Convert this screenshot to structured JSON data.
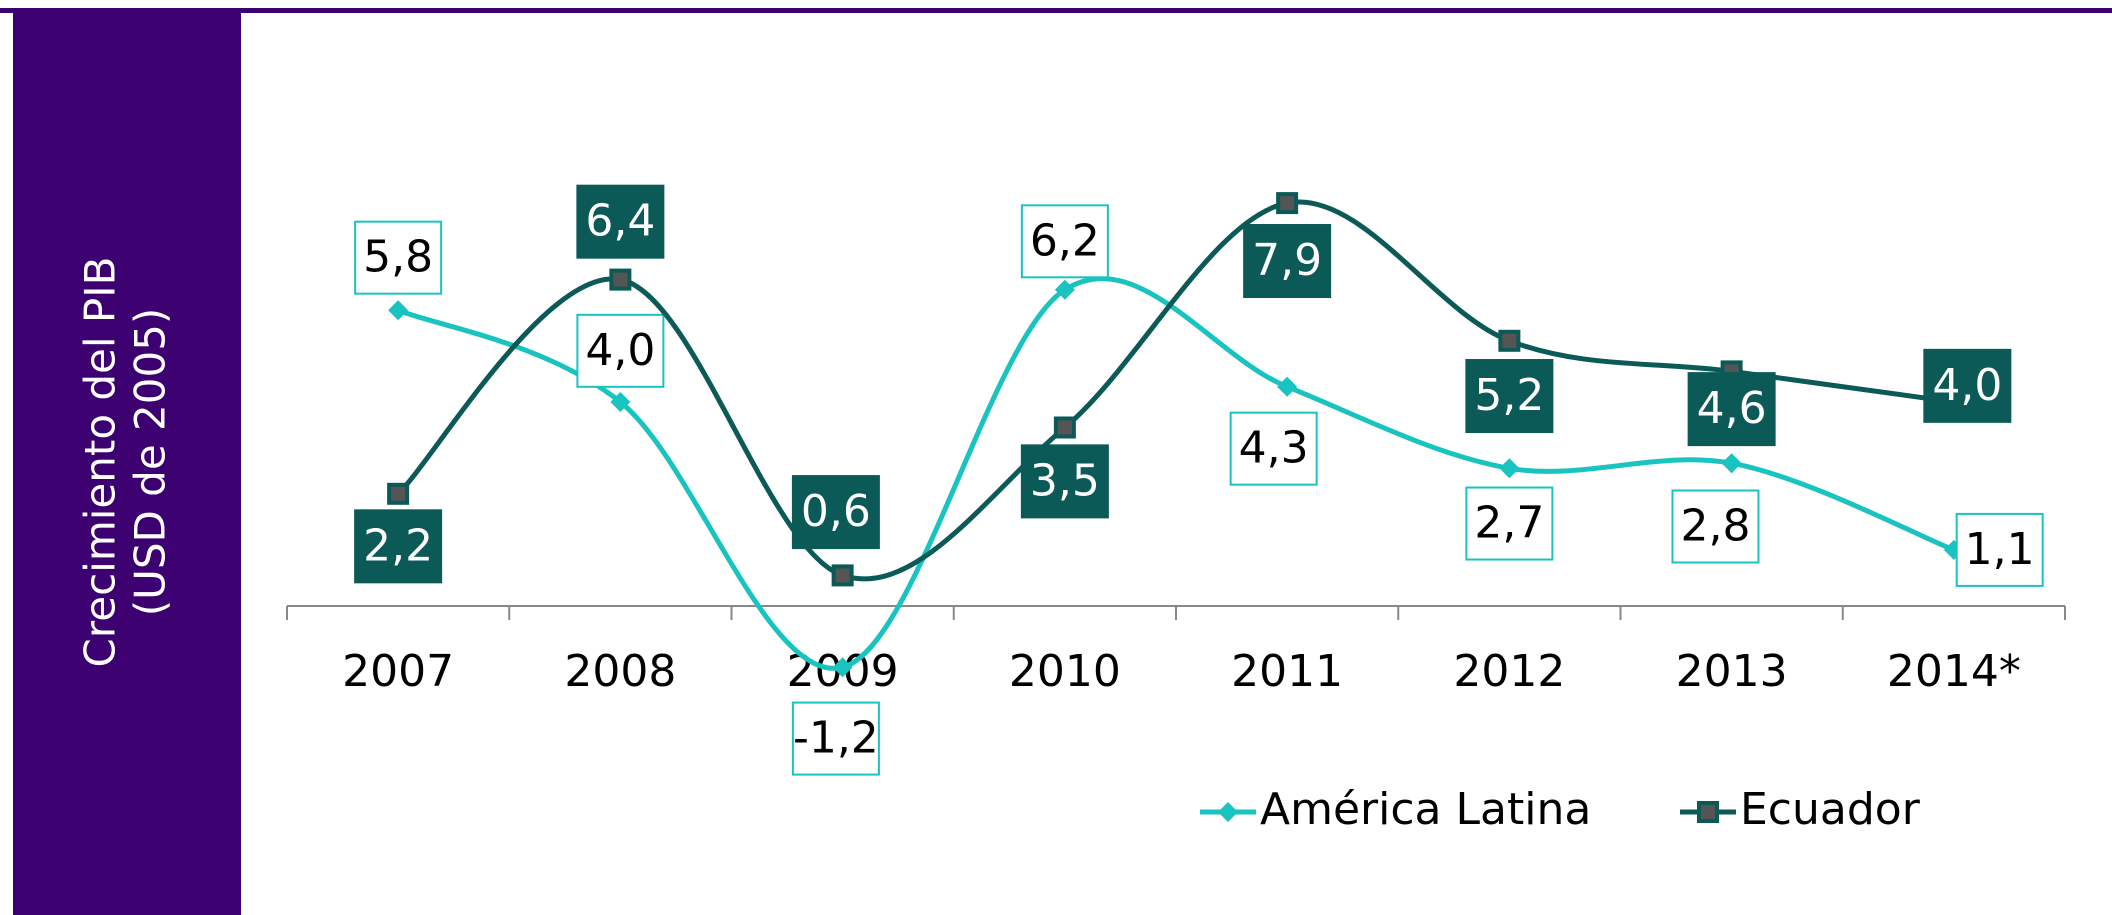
{
  "chart_data": {
    "type": "line",
    "y_label": [
      "Crecimiento del PIB",
      "(USD de 2005)"
    ],
    "categories": [
      "2007",
      "2008",
      "2009",
      "2010",
      "2011",
      "2012",
      "2013",
      "2014*"
    ],
    "ylim": [
      -2,
      10
    ],
    "legend": "bottom",
    "smooth": true,
    "series": [
      {
        "name": "América Latina",
        "color": "#19c3c0",
        "marker": "diamond",
        "values": [
          5.8,
          4.0,
          -1.2,
          6.2,
          4.3,
          2.7,
          2.8,
          1.1
        ],
        "value_labels": [
          "5,8",
          "4,0",
          "-1,2",
          "6,2",
          "4,3",
          "2,7",
          "2,8",
          "1,1"
        ]
      },
      {
        "name": "Ecuador",
        "color": "#0b5a58",
        "marker": "square",
        "values": [
          2.2,
          6.4,
          0.6,
          3.5,
          7.9,
          5.2,
          4.6,
          4.0
        ],
        "value_labels": [
          "2,2",
          "6,4",
          "0,6",
          "3,5",
          "7,9",
          "5,2",
          "4,6",
          "4,0"
        ]
      }
    ]
  }
}
